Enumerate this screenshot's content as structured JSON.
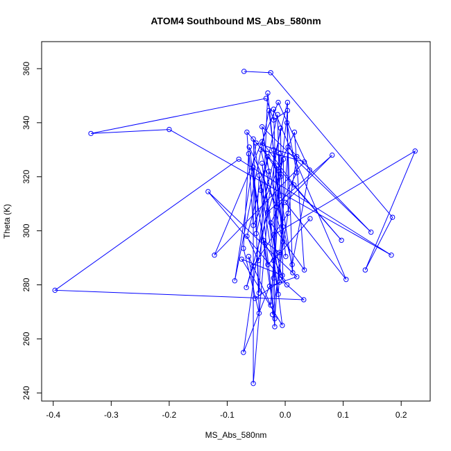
{
  "chart_data": {
    "type": "scatter",
    "title": "ATOM4 Southbound MS_Abs_580nm",
    "xlabel": "MS_Abs_580nm",
    "ylabel": "Theta (K)",
    "xlim": [
      -0.42,
      0.25
    ],
    "ylim": [
      237,
      370
    ],
    "xticks": [
      -0.4,
      -0.3,
      -0.2,
      -0.1,
      0.0,
      0.1,
      0.2
    ],
    "xtick_labels": [
      "-0.4",
      "-0.3",
      "-0.2",
      "-0.1",
      "0.0",
      "0.1",
      "0.2"
    ],
    "yticks": [
      240,
      260,
      280,
      300,
      320,
      340,
      360
    ],
    "ytick_labels": [
      "240",
      "260",
      "280",
      "300",
      "320",
      "340",
      "360"
    ],
    "grid": false,
    "connected": true,
    "color": "#0000ff",
    "series": [
      {
        "points": [
          [
            -0.071,
            359.0
          ],
          [
            -0.025,
            358.5
          ],
          [
            -0.03,
            351.0
          ],
          [
            -0.033,
            349.0
          ],
          [
            -0.02,
            345.0
          ],
          [
            0.004,
            347.5
          ],
          [
            -0.012,
            347.5
          ],
          [
            0.004,
            344.5
          ],
          [
            -0.028,
            344.5
          ],
          [
            -0.013,
            343.0
          ],
          [
            -0.02,
            341.0
          ],
          [
            0.003,
            340.0
          ],
          [
            -0.04,
            338.5
          ],
          [
            -0.008,
            338.0
          ],
          [
            -0.066,
            336.5
          ],
          [
            0.016,
            336.5
          ],
          [
            -0.335,
            336.0
          ],
          [
            -0.2,
            337.5
          ],
          [
            -0.055,
            334.0
          ],
          [
            -0.04,
            333.0
          ],
          [
            -0.05,
            332.5
          ],
          [
            -0.042,
            330.0
          ],
          [
            -0.062,
            331.0
          ],
          [
            0.005,
            331.0
          ],
          [
            -0.02,
            330.0
          ],
          [
            -0.01,
            328.5
          ],
          [
            0.224,
            329.5
          ],
          [
            -0.03,
            327.5
          ],
          [
            -0.063,
            328.5
          ],
          [
            0.081,
            328.0
          ],
          [
            -0.003,
            326.5
          ],
          [
            -0.08,
            326.5
          ],
          [
            -0.04,
            325.0
          ],
          [
            -0.015,
            324.0
          ],
          [
            0.033,
            325.5
          ],
          [
            0.02,
            327.5
          ],
          [
            -0.055,
            323.5
          ],
          [
            -0.028,
            322.0
          ],
          [
            0.042,
            322.5
          ],
          [
            0.02,
            321.5
          ],
          [
            -0.008,
            320.0
          ],
          [
            -0.045,
            320.5
          ],
          [
            0.015,
            317.0
          ],
          [
            -0.133,
            314.5
          ],
          [
            -0.042,
            315.0
          ],
          [
            -0.01,
            313.0
          ],
          [
            0.0,
            310.5
          ],
          [
            -0.015,
            309.0
          ],
          [
            -0.03,
            307.0
          ],
          [
            0.005,
            306.5
          ],
          [
            0.185,
            305.0
          ],
          [
            0.043,
            304.5
          ],
          [
            -0.025,
            303.0
          ],
          [
            -0.055,
            302.0
          ],
          [
            -0.004,
            301.5
          ],
          [
            0.148,
            299.5
          ],
          [
            -0.05,
            299.0
          ],
          [
            -0.02,
            298.5
          ],
          [
            -0.066,
            298.0
          ],
          [
            -0.038,
            296.5
          ],
          [
            0.097,
            296.5
          ],
          [
            -0.004,
            296.0
          ],
          [
            -0.072,
            293.5
          ],
          [
            -0.122,
            291.0
          ],
          [
            -0.01,
            292.0
          ],
          [
            0.183,
            291.0
          ],
          [
            -0.063,
            290.5
          ],
          [
            0.001,
            290.5
          ],
          [
            -0.075,
            289.5
          ],
          [
            -0.02,
            289.0
          ],
          [
            -0.046,
            289.0
          ],
          [
            -0.03,
            287.5
          ],
          [
            -0.055,
            287.0
          ],
          [
            0.012,
            287.5
          ],
          [
            0.033,
            285.5
          ],
          [
            0.138,
            285.5
          ],
          [
            0.013,
            284.5
          ],
          [
            -0.005,
            283.5
          ],
          [
            0.02,
            283.0
          ],
          [
            -0.02,
            282.5
          ],
          [
            0.105,
            282.0
          ],
          [
            -0.087,
            281.5
          ],
          [
            -0.01,
            281.0
          ],
          [
            -0.004,
            281.5
          ],
          [
            0.003,
            280.0
          ],
          [
            -0.067,
            279.0
          ],
          [
            -0.027,
            279.5
          ],
          [
            -0.397,
            278.0
          ],
          [
            -0.045,
            277.0
          ],
          [
            -0.012,
            276.5
          ],
          [
            0.032,
            274.5
          ],
          [
            -0.052,
            275.0
          ],
          [
            -0.025,
            272.5
          ],
          [
            -0.045,
            269.5
          ],
          [
            -0.022,
            269.0
          ],
          [
            -0.018,
            267.5
          ],
          [
            -0.005,
            265.0
          ],
          [
            -0.018,
            264.5
          ],
          [
            -0.072,
            255.0
          ],
          [
            -0.055,
            243.5
          ]
        ],
        "order": [
          0,
          1,
          50,
          75,
          26,
          57,
          7,
          10,
          3,
          16,
          17,
          65,
          31,
          87,
          90,
          84,
          43,
          78,
          86,
          98,
          37,
          12,
          55,
          23,
          95,
          22,
          47,
          4,
          80,
          46,
          29,
          48,
          99,
          36,
          88,
          2,
          61,
          21,
          34,
          63,
          6,
          38,
          73,
          19,
          42,
          60,
          14,
          53,
          15,
          74,
          52,
          39,
          11,
          76,
          33,
          94,
          35,
          20,
          81,
          8,
          67,
          24,
          97,
          44,
          9,
          45,
          79,
          25,
          40,
          27,
          58,
          70,
          13,
          83,
          41,
          56,
          5,
          49,
          72,
          85,
          30,
          54,
          89,
          18,
          93,
          62,
          28,
          71,
          64,
          59,
          77,
          68,
          96,
          32,
          82,
          91,
          66,
          92,
          69,
          51
        ]
      }
    ]
  }
}
